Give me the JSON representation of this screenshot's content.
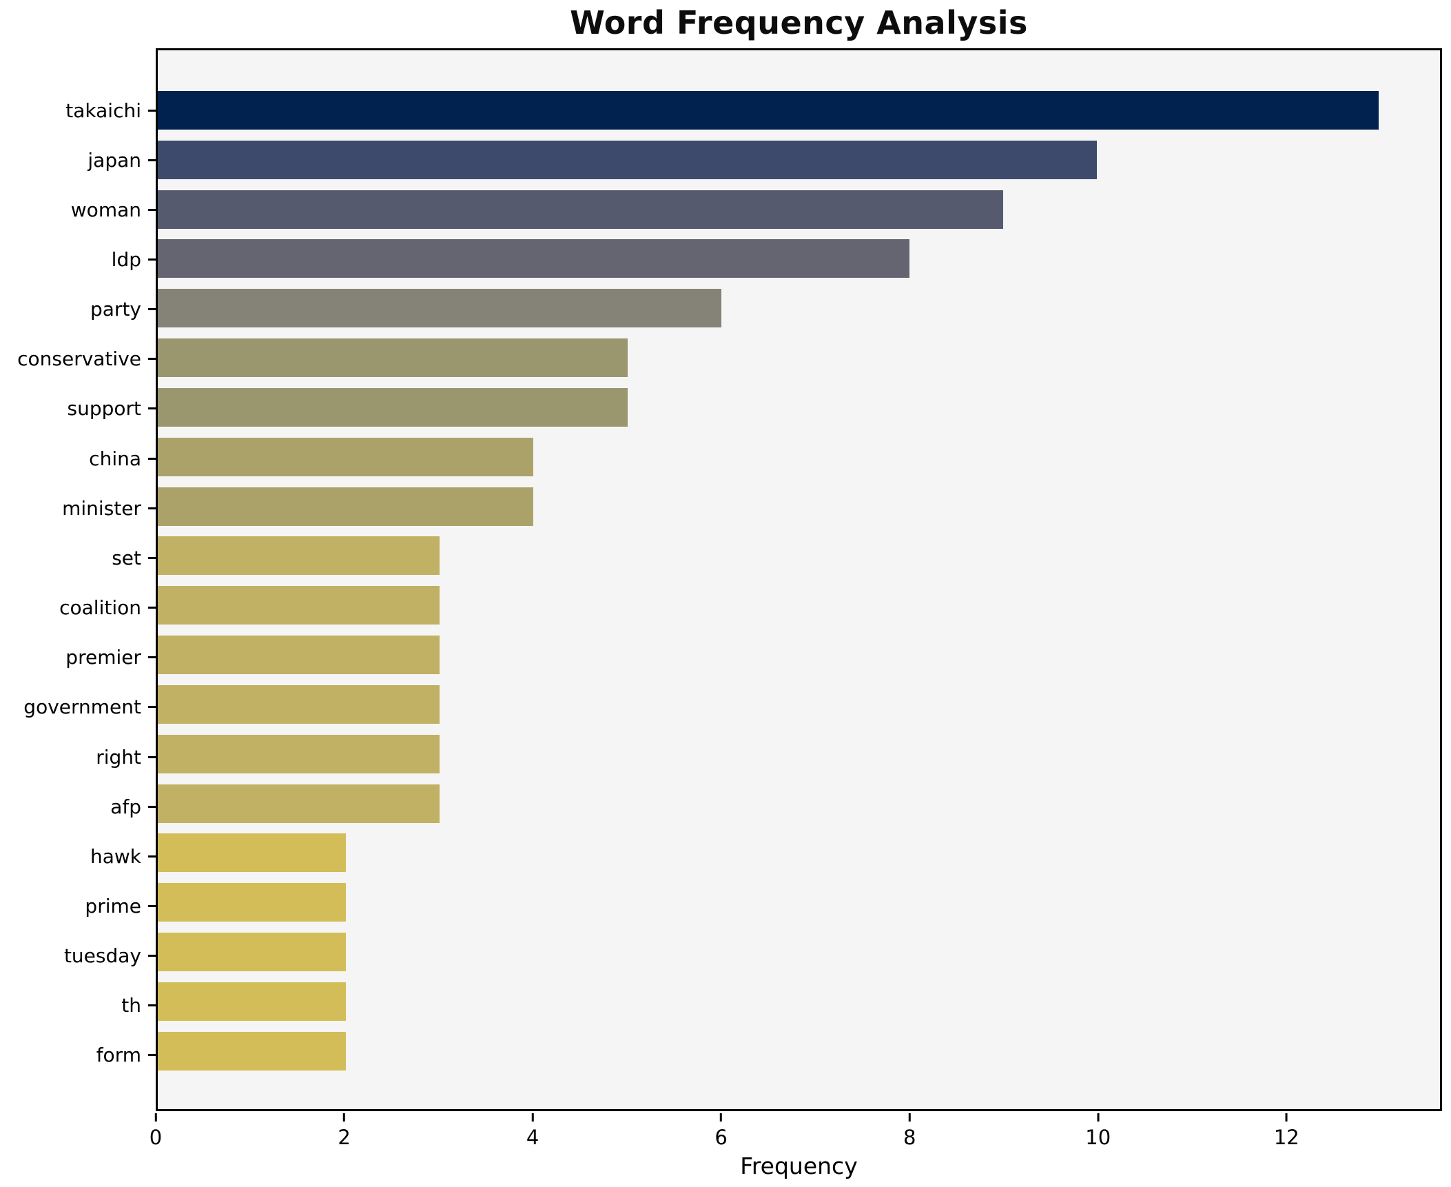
{
  "title": "Word Frequency Analysis",
  "chart_data": {
    "type": "bar",
    "orientation": "horizontal",
    "title": "Word Frequency Analysis",
    "xlabel": "Frequency",
    "ylabel": "",
    "categories": [
      "takaichi",
      "japan",
      "woman",
      "ldp",
      "party",
      "conservative",
      "support",
      "china",
      "minister",
      "set",
      "coalition",
      "premier",
      "government",
      "right",
      "afp",
      "hawk",
      "prime",
      "tuesday",
      "th",
      "form"
    ],
    "values": [
      13,
      10,
      9,
      8,
      6,
      5,
      5,
      4,
      4,
      3,
      3,
      3,
      3,
      3,
      3,
      2,
      2,
      2,
      2,
      2
    ],
    "bar_colors": [
      "#01224f",
      "#3e4a6c",
      "#555a6e",
      "#646571",
      "#858277",
      "#9a976f",
      "#9a976f",
      "#aba26a",
      "#aba26a",
      "#c0b164",
      "#c0b164",
      "#c0b164",
      "#c0b164",
      "#c0b164",
      "#c0b164",
      "#d3bd59",
      "#d3bd59",
      "#d3bd59",
      "#d3bd59",
      "#d3bd59"
    ],
    "xlim": [
      0,
      13.65
    ],
    "xticks": [
      0,
      2,
      4,
      6,
      8,
      10,
      12
    ],
    "grid": false,
    "legend_position": "none",
    "plot_background": "#f6f5f5",
    "figure_background": "#ffffff",
    "spine_color": "#000000"
  }
}
